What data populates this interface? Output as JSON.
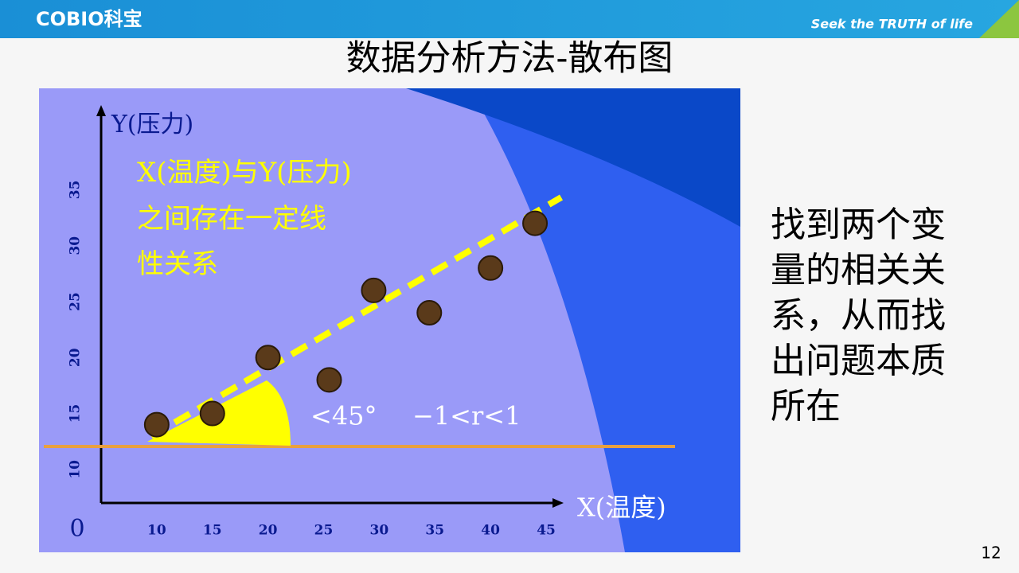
{
  "header": {
    "logo": "COBIO科宝",
    "slogan": "Seek the TRUTH of life"
  },
  "title": "数据分析方法-散布图",
  "figure": {
    "type": "scatter",
    "y_label": "Y(压力)",
    "x_label": "X(温度)",
    "origin_label": "0",
    "annotation": [
      "X(温度)与Y(压力)",
      "之间存在一定线",
      "性关系"
    ],
    "angle_note": "<45°",
    "r_note": "−1<r<1",
    "x": [
      10,
      15,
      20,
      25.5,
      29.5,
      34.5,
      40,
      44
    ],
    "y": [
      14,
      15,
      20,
      18,
      26,
      24,
      28,
      32
    ],
    "xlim": [
      5,
      46
    ],
    "ylim": [
      7,
      42
    ],
    "xticks": [
      10,
      15,
      20,
      25,
      30,
      35,
      40,
      45
    ],
    "yticks": [
      10,
      15,
      20,
      25,
      30,
      35
    ],
    "color": "#5a3a1a"
  },
  "side_text": [
    "找到两个变",
    "量的相关关",
    "系，从而找",
    "出问题本质",
    "所在"
  ],
  "page_number": "12"
}
